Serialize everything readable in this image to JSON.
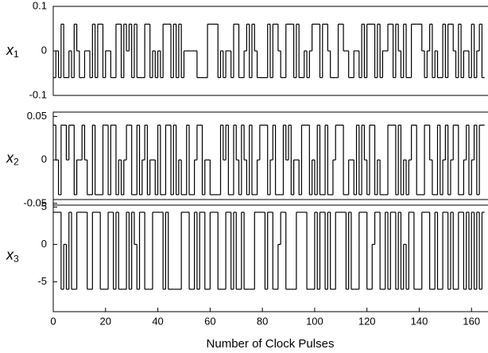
{
  "chart_data": {
    "type": "step",
    "xlabel": "Number of Clock Pulses",
    "xlim": [
      0,
      166
    ],
    "xticks": [
      0,
      20,
      40,
      60,
      80,
      100,
      120,
      140,
      160
    ],
    "color": "#000000",
    "x": [
      0,
      1,
      2,
      3,
      4,
      5,
      6,
      7,
      8,
      9,
      10,
      11,
      12,
      13,
      14,
      15,
      16,
      17,
      18,
      19,
      20,
      21,
      22,
      23,
      24,
      25,
      26,
      27,
      28,
      29,
      30,
      31,
      32,
      33,
      34,
      35,
      36,
      37,
      38,
      39,
      40,
      41,
      42,
      43,
      44,
      45,
      46,
      47,
      48,
      49,
      50,
      51,
      52,
      53,
      54,
      55,
      56,
      57,
      58,
      59,
      60,
      61,
      62,
      63,
      64,
      65,
      66,
      67,
      68,
      69,
      70,
      71,
      72,
      73,
      74,
      75,
      76,
      77,
      78,
      79,
      80,
      81,
      82,
      83,
      84,
      85,
      86,
      87,
      88,
      89,
      90,
      91,
      92,
      93,
      94,
      95,
      96,
      97,
      98,
      99,
      100,
      101,
      102,
      103,
      104,
      105,
      106,
      107,
      108,
      109,
      110,
      111,
      112,
      113,
      114,
      115,
      116,
      117,
      118,
      119,
      120,
      121,
      122,
      123,
      124,
      125,
      126,
      127,
      128,
      129,
      130,
      131,
      132,
      133,
      134,
      135,
      136,
      137,
      138,
      139,
      140,
      141,
      142,
      143,
      144,
      145,
      146,
      147,
      148,
      149,
      150,
      151,
      152,
      153,
      154,
      155,
      156,
      157,
      158,
      159,
      160,
      161,
      162,
      163,
      164
    ],
    "panels": [
      {
        "ylabel": "x",
        "ylabel_subscript": "1",
        "ylim": [
          -0.1,
          0.1
        ],
        "yticks": [
          -0.1,
          0,
          0.1
        ],
        "values": [
          -0.06,
          0,
          -0.06,
          0.06,
          -0.06,
          -0.06,
          0,
          -0.06,
          0.06,
          0,
          -0.06,
          -0.06,
          0,
          0,
          -0.06,
          0.06,
          -0.06,
          0.06,
          0.06,
          -0.06,
          0,
          0,
          -0.06,
          -0.06,
          0.06,
          0.06,
          -0.06,
          0.06,
          0,
          0.06,
          -0.06,
          0.06,
          -0.06,
          -0.06,
          -0.06,
          0.06,
          0.06,
          -0.06,
          0,
          -0.06,
          0,
          -0.06,
          0.06,
          0.06,
          0.06,
          -0.06,
          0.06,
          -0.06,
          0.06,
          -0.06,
          0,
          0,
          0,
          0,
          0,
          -0.06,
          -0.06,
          -0.06,
          -0.06,
          0.06,
          0.06,
          0.06,
          0.06,
          -0.06,
          0,
          -0.06,
          0,
          0,
          -0.06,
          0.06,
          0.06,
          -0.06,
          -0.06,
          0,
          0.06,
          -0.06,
          0.06,
          0,
          -0.06,
          -0.06,
          -0.06,
          -0.06,
          0.06,
          -0.06,
          0.06,
          0.06,
          0,
          -0.06,
          -0.06,
          0.06,
          0.06,
          0.06,
          -0.06,
          0.06,
          -0.06,
          -0.06,
          0,
          -0.06,
          0,
          0.06,
          0.06,
          0.06,
          -0.06,
          0.06,
          0.06,
          0,
          -0.06,
          -0.06,
          -0.06,
          0.06,
          0.06,
          0,
          0,
          -0.06,
          -0.06,
          0,
          0,
          -0.06,
          0.06,
          -0.06,
          0.06,
          0.06,
          0.06,
          -0.06,
          0.06,
          -0.06,
          0,
          0,
          0.06,
          0.06,
          -0.06,
          0.06,
          0,
          -0.06,
          0.06,
          -0.06,
          -0.06,
          0.06,
          0.06,
          0.06,
          0.06,
          0,
          -0.06,
          0,
          0.06,
          -0.06,
          0,
          -0.06,
          -0.06,
          0.06,
          -0.06,
          0.06,
          0.06,
          0,
          -0.06,
          0.06,
          -0.06,
          0,
          0,
          -0.06,
          0.06,
          -0.06,
          0,
          0.06,
          -0.06
        ]
      },
      {
        "ylabel": "x",
        "ylabel_subscript": "2",
        "ylim": [
          -0.052,
          0.055
        ],
        "yticks": [
          -0.05,
          0,
          0.05
        ],
        "values": [
          0.04,
          0,
          -0.04,
          0.04,
          0.04,
          0,
          0.04,
          0.04,
          -0.04,
          0,
          0,
          0.04,
          0,
          -0.04,
          -0.04,
          0.04,
          -0.04,
          -0.04,
          -0.04,
          0.04,
          0.04,
          -0.04,
          0.04,
          0.04,
          -0.04,
          0,
          -0.04,
          0,
          0.04,
          0.04,
          -0.04,
          -0.04,
          0.04,
          -0.04,
          0,
          0.04,
          -0.04,
          0,
          0,
          -0.04,
          0.04,
          -0.04,
          -0.04,
          0.04,
          0.04,
          -0.04,
          0.04,
          -0.04,
          0,
          -0.04,
          -0.04,
          0.04,
          -0.04,
          -0.04,
          0,
          0.04,
          0.04,
          -0.04,
          0,
          0,
          -0.04,
          -0.04,
          -0.04,
          -0.04,
          0.04,
          0,
          0.04,
          -0.04,
          -0.04,
          0.04,
          0,
          -0.04,
          0.04,
          0,
          -0.04,
          0.04,
          -0.04,
          -0.04,
          0,
          0.04,
          0.04,
          0.04,
          -0.04,
          0,
          0.04,
          -0.04,
          -0.04,
          -0.04,
          0.04,
          0,
          0.04,
          -0.04,
          0,
          0,
          -0.04,
          0.04,
          0.04,
          0.04,
          -0.04,
          0,
          -0.04,
          0.04,
          -0.04,
          -0.04,
          0.04,
          -0.04,
          -0.04,
          0,
          0.04,
          0.04,
          0.04,
          -0.04,
          -0.04,
          0,
          0,
          -0.04,
          0.04,
          -0.04,
          0.04,
          0,
          -0.04,
          0.04,
          0.04,
          -0.04,
          0,
          -0.04,
          -0.04,
          -0.04,
          0.04,
          0.04,
          0.04,
          -0.04,
          0.04,
          -0.04,
          0,
          -0.04,
          0,
          0.04,
          0.04,
          -0.04,
          -0.04,
          -0.04,
          0.04,
          0.04,
          0,
          -0.04,
          -0.04,
          0.04,
          -0.04,
          0,
          0.04,
          -0.04,
          0,
          0.04,
          0.04,
          -0.04,
          -0.04,
          0,
          0.04,
          -0.04,
          0,
          0.04,
          -0.04,
          0.04,
          0.04
        ]
      },
      {
        "ylabel": "x",
        "ylabel_subscript": "3",
        "ylim": [
          -9,
          6
        ],
        "yticks": [
          -5,
          0,
          5
        ],
        "values": [
          4.3,
          4.3,
          4.3,
          -6,
          0,
          -6,
          4.3,
          -6,
          -6,
          4.3,
          4.3,
          4.3,
          4.3,
          -6,
          -6,
          4.3,
          4.3,
          4.3,
          -6,
          -6,
          -6,
          4.3,
          4.3,
          -6,
          4.3,
          -6,
          -6,
          -6,
          4.3,
          -6,
          4.3,
          0,
          -6,
          4.3,
          4.3,
          -6,
          -6,
          -6,
          4.3,
          4.3,
          4.3,
          4.3,
          -6,
          4.3,
          -6,
          -6,
          -6,
          -6,
          -6,
          4.3,
          4.3,
          4.3,
          -6,
          -6,
          4.3,
          -6,
          4.3,
          4.3,
          -6,
          -6,
          4.3,
          4.3,
          4.3,
          -6,
          -6,
          -6,
          4.3,
          4.3,
          -6,
          4.3,
          -6,
          -6,
          4.3,
          -6,
          -6,
          -6,
          -6,
          4.3,
          4.3,
          4.3,
          4.3,
          -6,
          4.3,
          4.3,
          -6,
          -6,
          0,
          4.3,
          4.3,
          -6,
          -6,
          -6,
          -6,
          4.3,
          4.3,
          4.3,
          4.3,
          -6,
          -6,
          -6,
          4.3,
          -6,
          4.3,
          4.3,
          -6,
          4.3,
          -6,
          -6,
          4.3,
          4.3,
          4.3,
          4.3,
          -6,
          4.3,
          -6,
          -6,
          -6,
          4.3,
          4.3,
          4.3,
          -6,
          -6,
          0,
          4.3,
          4.3,
          -6,
          -6,
          4.3,
          -6,
          4.3,
          4.3,
          -6,
          4.3,
          -6,
          0,
          -6,
          4.3,
          4.3,
          -6,
          -6,
          -6,
          4.3,
          4.3,
          4.3,
          -6,
          -6,
          4.3,
          -6,
          -6,
          4.3,
          4.3,
          -6,
          4.3,
          -6,
          -6,
          4.3,
          4.3,
          -6,
          4.3,
          -6,
          4.3,
          -6,
          4.3,
          -6,
          4.3
        ]
      }
    ]
  }
}
